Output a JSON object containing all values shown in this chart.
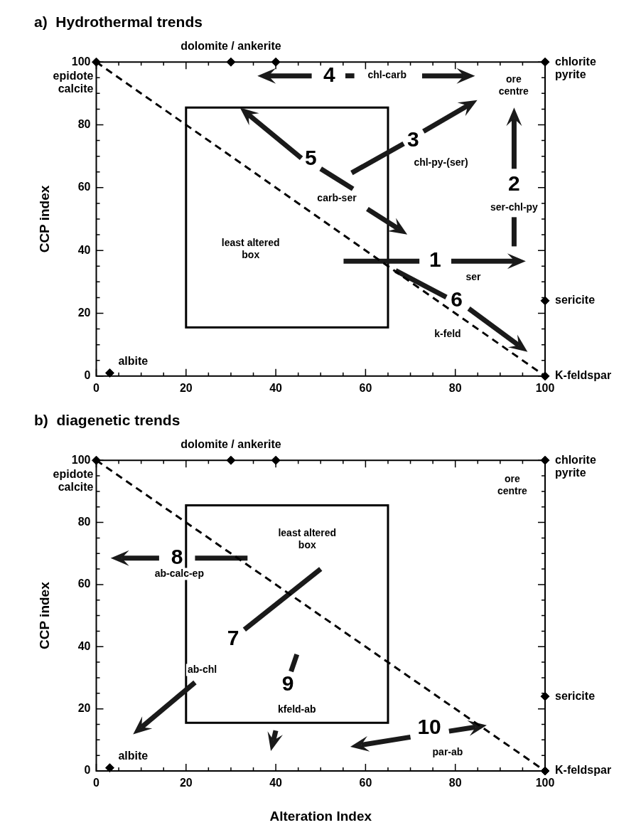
{
  "chart_data": [
    {
      "type": "scatter",
      "title": "a)  Hydrothermal trends",
      "ylabel": "CCP index",
      "xlim": [
        0,
        100
      ],
      "ylim": [
        0,
        100
      ],
      "xticks": [
        0,
        {
          "value": 5,
          "label": null
        },
        {
          "value": 10,
          "label": null
        },
        {
          "value": 15,
          "label": null
        },
        20,
        {
          "value": 25,
          "label": null
        },
        {
          "value": 30,
          "label": null
        },
        {
          "value": 35,
          "label": null
        },
        40,
        {
          "value": 45,
          "label": null
        },
        {
          "value": 50,
          "label": null
        },
        {
          "value": 55,
          "label": null
        },
        60,
        {
          "value": 65,
          "label": null
        },
        {
          "value": 70,
          "label": null
        },
        {
          "value": 75,
          "label": null
        },
        80,
        {
          "value": 85,
          "label": null
        },
        {
          "value": 90,
          "label": null
        },
        {
          "value": 95,
          "label": null
        },
        100
      ],
      "yticks": [
        0,
        {
          "value": 5,
          "label": null
        },
        {
          "value": 10,
          "label": null
        },
        {
          "value": 15,
          "label": null
        },
        20,
        {
          "value": 25,
          "label": null
        },
        {
          "value": 30,
          "label": null
        },
        {
          "value": 35,
          "label": null
        },
        40,
        {
          "value": 45,
          "label": null
        },
        {
          "value": 50,
          "label": null
        },
        {
          "value": 55,
          "label": null
        },
        60,
        {
          "value": 65,
          "label": null
        },
        {
          "value": 70,
          "label": null
        },
        {
          "value": 75,
          "label": null
        },
        80,
        {
          "value": 85,
          "label": null
        },
        {
          "value": 90,
          "label": null
        },
        {
          "value": 95,
          "label": null
        },
        100
      ],
      "grid": false,
      "legend": false,
      "series": [
        {
          "type": "scatter",
          "marker": "diamond",
          "color": "#000000",
          "x": [
            0,
            30,
            40,
            100,
            100,
            3,
            100
          ],
          "values": [
            100,
            100,
            100,
            100,
            24,
            1,
            0
          ],
          "value_labels": [
            "epidote\ncalcite",
            "dolomite / ankerite",
            null,
            "chlorite\npyrite",
            "sericite",
            "albite",
            "K-feldspar"
          ]
        },
        {
          "type": "line",
          "line_style": "dashed",
          "color": "#000000",
          "x": [
            0,
            100
          ],
          "values": [
            100,
            0
          ]
        }
      ],
      "annotations": [
        "ore\ncentre",
        "4",
        "chl-carb",
        "3",
        "chl-py-(ser)",
        "5",
        "carb-ser",
        "2",
        "ser-chl-py",
        "least altered\nbox",
        "1",
        "ser",
        "6",
        "k-feld"
      ]
    },
    {
      "type": "scatter",
      "title": "b)  diagenetic trends",
      "ylabel": "CCP index",
      "xlabel": "Alteration Index",
      "xlim": [
        0,
        100
      ],
      "ylim": [
        0,
        100
      ],
      "xticks": [
        0,
        {
          "value": 5,
          "label": null
        },
        {
          "value": 10,
          "label": null
        },
        {
          "value": 15,
          "label": null
        },
        20,
        {
          "value": 25,
          "label": null
        },
        {
          "value": 30,
          "label": null
        },
        {
          "value": 35,
          "label": null
        },
        40,
        {
          "value": 45,
          "label": null
        },
        {
          "value": 50,
          "label": null
        },
        {
          "value": 55,
          "label": null
        },
        60,
        {
          "value": 65,
          "label": null
        },
        {
          "value": 70,
          "label": null
        },
        {
          "value": 75,
          "label": null
        },
        80,
        {
          "value": 85,
          "label": null
        },
        {
          "value": 90,
          "label": null
        },
        {
          "value": 95,
          "label": null
        },
        100
      ],
      "yticks": [
        0,
        {
          "value": 5,
          "label": null
        },
        {
          "value": 10,
          "label": null
        },
        {
          "value": 15,
          "label": null
        },
        20,
        {
          "value": 25,
          "label": null
        },
        {
          "value": 30,
          "label": null
        },
        {
          "value": 35,
          "label": null
        },
        40,
        {
          "value": 45,
          "label": null
        },
        {
          "value": 50,
          "label": null
        },
        {
          "value": 55,
          "label": null
        },
        60,
        {
          "value": 65,
          "label": null
        },
        {
          "value": 70,
          "label": null
        },
        {
          "value": 75,
          "label": null
        },
        80,
        {
          "value": 85,
          "label": null
        },
        {
          "value": 90,
          "label": null
        },
        {
          "value": 95,
          "label": null
        },
        100
      ],
      "grid": false,
      "legend": false,
      "series": [
        {
          "type": "scatter",
          "marker": "diamond",
          "color": "#000000",
          "x": [
            0,
            30,
            40,
            100,
            100,
            3,
            100
          ],
          "values": [
            100,
            100,
            100,
            100,
            24,
            1,
            0
          ],
          "value_labels": [
            "epidote\ncalcite",
            "dolomite / ankerite",
            null,
            "chlorite\npyrite",
            "sericite",
            "albite",
            "K-feldspar"
          ]
        },
        {
          "type": "line",
          "line_style": "dashed",
          "color": "#000000",
          "x": [
            0,
            100
          ],
          "values": [
            100,
            0
          ]
        }
      ],
      "annotations": [
        "ore\ncentre",
        "least altered\nbox",
        "8",
        "ab-calc-ep",
        "7",
        "ab-chl",
        "9",
        "kfeld-ab",
        "10",
        "par-ab"
      ]
    }
  ]
}
